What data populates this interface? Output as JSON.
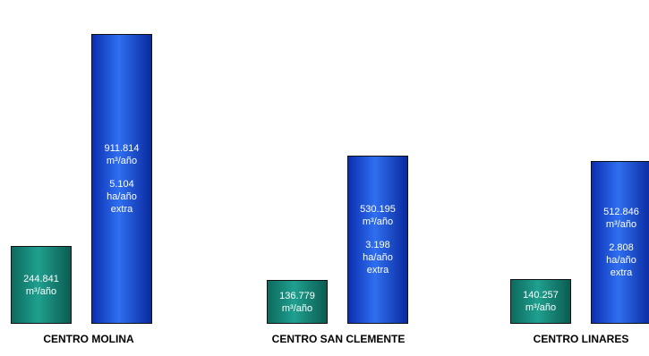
{
  "chart_data": {
    "type": "bar",
    "title": "",
    "xlabel": "",
    "ylabel": "",
    "ylim": [
      0,
      1000000
    ],
    "grid": false,
    "colors": {
      "series_1": "#138a7a",
      "series_2": "#1f54e0"
    },
    "categories": [
      "CENTRO MOLINA",
      "CENTRO SAN CLEMENTE",
      "CENTRO LINARES"
    ],
    "series": [
      {
        "values": [
          244841,
          136779,
          140257
        ],
        "labels": [
          {
            "value": "244.841",
            "unit": "m³/año"
          },
          {
            "value": "136.779",
            "unit": "m³/año"
          },
          {
            "value": "140.257",
            "unit": "m³/año"
          }
        ]
      },
      {
        "values": [
          911814,
          530195,
          512846
        ],
        "labels": [
          {
            "value": "911.814",
            "unit": "m³/año",
            "ha": "5.104",
            "ha_unit": "ha/año",
            "extra": "extra"
          },
          {
            "value": "530.195",
            "unit": "m³/año",
            "ha": "3.198",
            "ha_unit": "ha/año",
            "extra": "extra"
          },
          {
            "value": "512.846",
            "unit": "m³/año",
            "ha": "2.808",
            "ha_unit": "ha/año",
            "extra": "extra"
          }
        ]
      }
    ]
  }
}
